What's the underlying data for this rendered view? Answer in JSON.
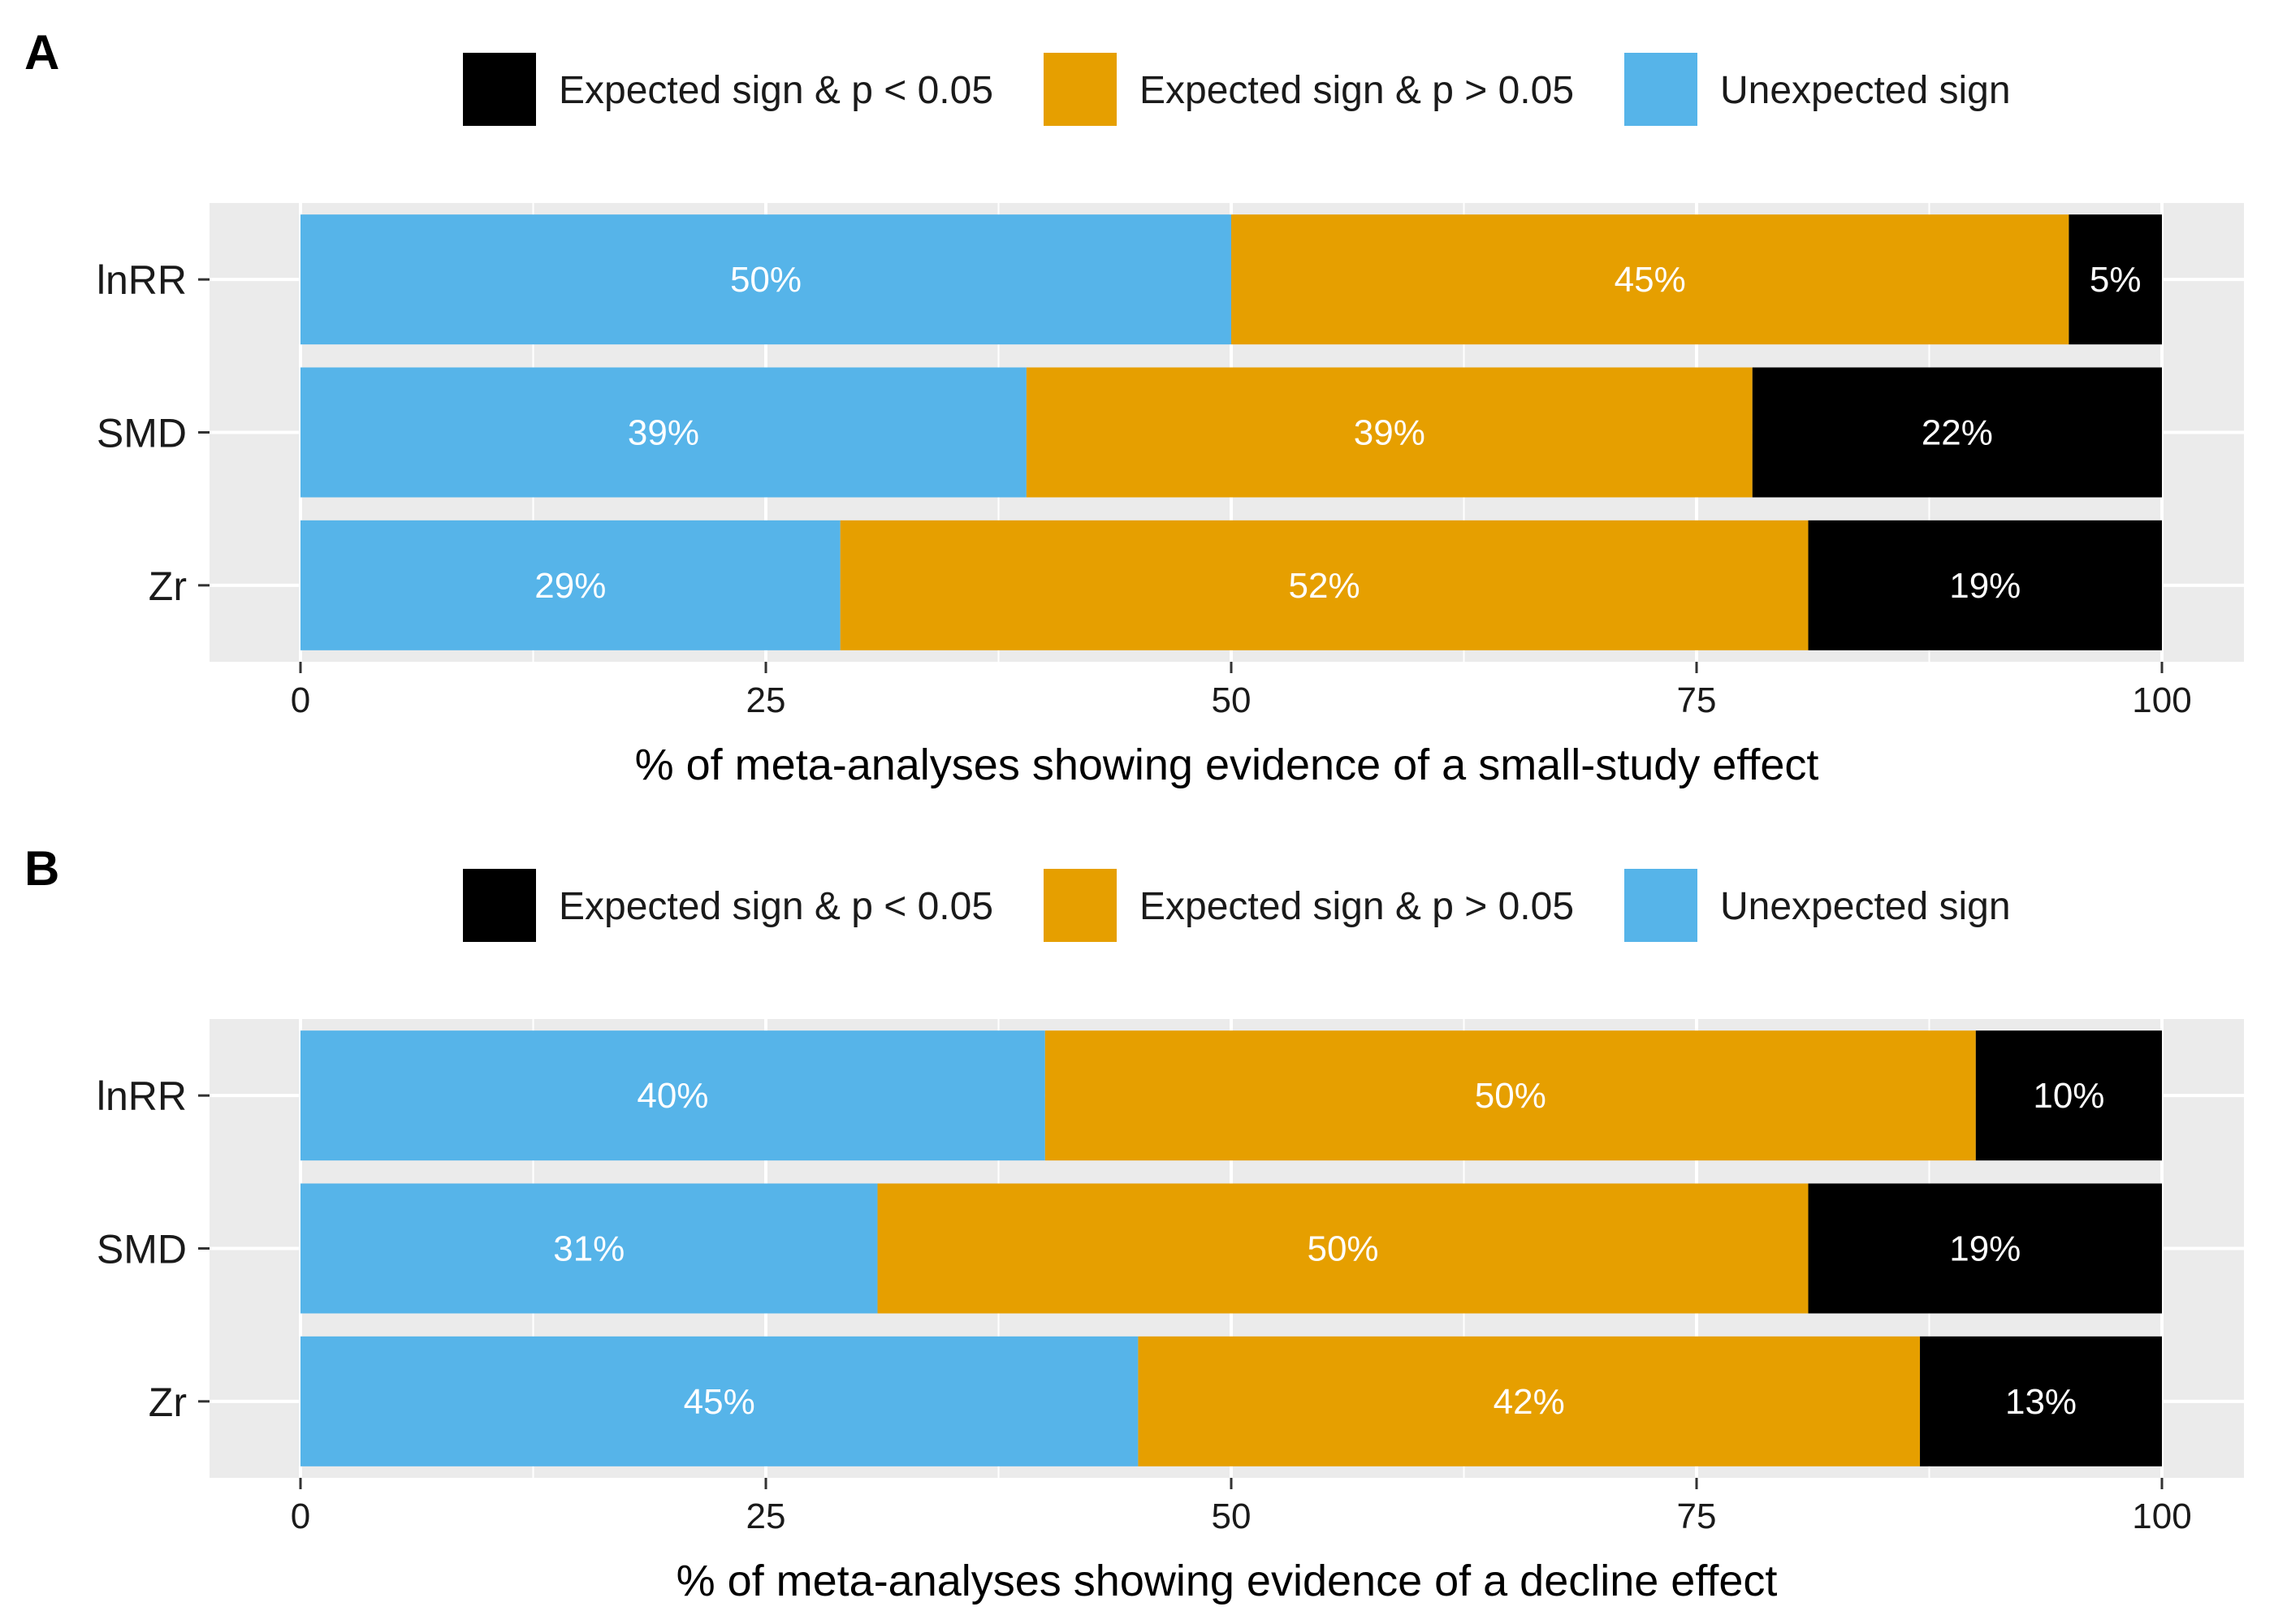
{
  "chart_data": [
    {
      "type": "bar",
      "orientation": "horizontal",
      "stacked": true,
      "panel_label": "A",
      "xlabel": "% of meta-analyses showing evidence of a small-study effect",
      "ylabel": "",
      "xlim": [
        0,
        100
      ],
      "xticks": [
        "0",
        "25",
        "50",
        "75",
        "100"
      ],
      "categories": [
        "lnRR",
        "SMD",
        "Zr"
      ],
      "legend_position": "top",
      "series": [
        {
          "name": "Unexpected sign",
          "color": "#56B4E9",
          "label_color": "#ffffff",
          "values": [
            50,
            39,
            29
          ],
          "labels": [
            "50%",
            "39%",
            "29%"
          ]
        },
        {
          "name": "Expected sign & p > 0.05",
          "color": "#E69F00",
          "label_color": "#ffffff",
          "values": [
            45,
            39,
            52
          ],
          "labels": [
            "45%",
            "39%",
            "52%"
          ]
        },
        {
          "name": "Expected sign & p < 0.05",
          "color": "#000000",
          "label_color": "#ffffff",
          "values": [
            5,
            22,
            19
          ],
          "labels": [
            "5%",
            "22%",
            "19%"
          ]
        }
      ],
      "legend_order": [
        "Expected sign & p < 0.05",
        "Expected sign & p > 0.05",
        "Unexpected sign"
      ],
      "grid": true
    },
    {
      "type": "bar",
      "orientation": "horizontal",
      "stacked": true,
      "panel_label": "B",
      "xlabel": "% of meta-analyses showing evidence of a decline effect",
      "ylabel": "",
      "xlim": [
        0,
        100
      ],
      "xticks": [
        "0",
        "25",
        "50",
        "75",
        "100"
      ],
      "categories": [
        "lnRR",
        "SMD",
        "Zr"
      ],
      "legend_position": "top",
      "series": [
        {
          "name": "Unexpected sign",
          "color": "#56B4E9",
          "label_color": "#ffffff",
          "values": [
            40,
            31,
            45
          ],
          "labels": [
            "40%",
            "31%",
            "45%"
          ]
        },
        {
          "name": "Expected sign & p > 0.05",
          "color": "#E69F00",
          "label_color": "#ffffff",
          "values": [
            50,
            50,
            42
          ],
          "labels": [
            "50%",
            "50%",
            "42%"
          ]
        },
        {
          "name": "Expected sign & p < 0.05",
          "color": "#000000",
          "label_color": "#ffffff",
          "values": [
            10,
            19,
            13
          ],
          "labels": [
            "10%",
            "19%",
            "13%"
          ]
        }
      ],
      "legend_order": [
        "Expected sign & p < 0.05",
        "Expected sign & p > 0.05",
        "Unexpected sign"
      ],
      "grid": true
    }
  ]
}
